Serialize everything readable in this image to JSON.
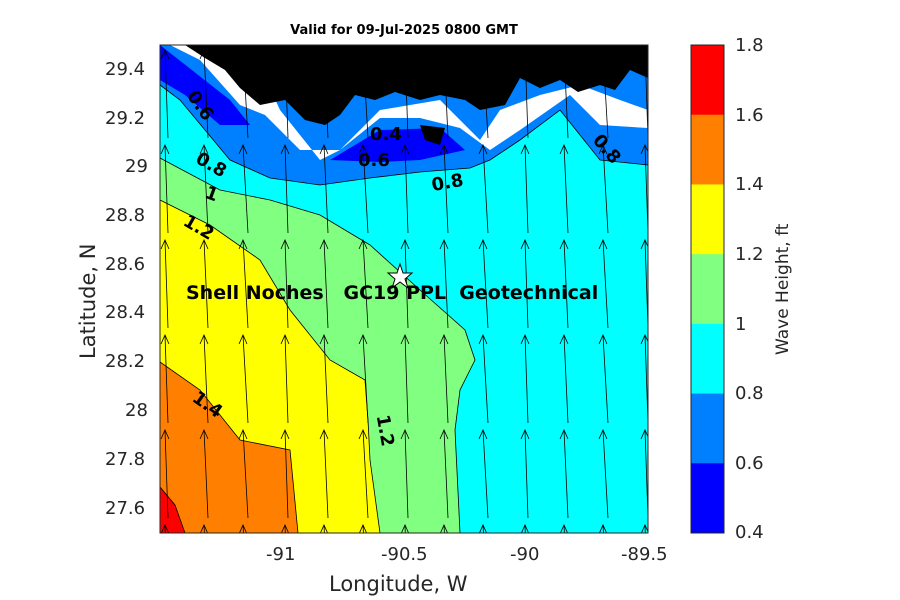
{
  "map": {
    "title": "Valid for 09-Jul-2025 0800 GMT",
    "xlabel": "Longitude, W",
    "ylabel": "Latitude, N",
    "x_ticks": [
      "-91",
      "-90.5",
      "-90",
      "-89.5"
    ],
    "y_ticks": [
      "29.4",
      "29.2",
      "29",
      "28.8",
      "28.6",
      "28.4",
      "28.2",
      "28",
      "27.8",
      "27.6"
    ],
    "station_label": "Shell Noches   GC19 PPL  Geotechnical",
    "contour_labels": [
      "0.6",
      "0.8",
      "1",
      "1.2",
      "1.4",
      "0.4",
      "0.6",
      "0.8",
      "0.8",
      "1.2"
    ],
    "colorbar": {
      "label": "Wave Height, ft",
      "ticks": [
        "1.8",
        "1.6",
        "1.4",
        "1.2",
        "1",
        "0.8",
        "0.6",
        "0.4"
      ],
      "colors": [
        "#ff0000",
        "#ff8000",
        "#ffff00",
        "#80ff80",
        "#00ffff",
        "#0080ff",
        "#0000ff"
      ]
    },
    "land_color": "#000000",
    "marker": "star-icon"
  }
}
